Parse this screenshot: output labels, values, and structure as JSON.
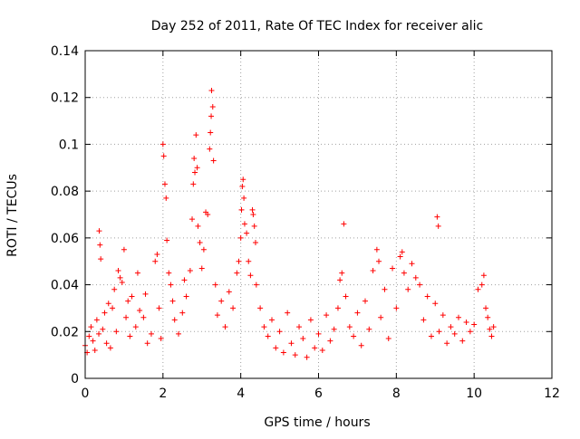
{
  "chart_data": {
    "type": "scatter",
    "title": "Day 252 of 2011, Rate Of TEC Index for receiver alic",
    "xlabel": "GPS time / hours",
    "ylabel": "ROTI / TECUs",
    "xlim": [
      0,
      12
    ],
    "ylim": [
      0,
      0.14
    ],
    "xticks": [
      0,
      2,
      4,
      6,
      8,
      10,
      12
    ],
    "yticks": [
      0,
      0.02,
      0.04,
      0.06,
      0.08,
      0.1,
      0.12,
      0.14
    ],
    "xtick_labels": [
      "0",
      "2",
      "4",
      "6",
      "8",
      "10",
      "12"
    ],
    "ytick_labels": [
      "0",
      "0.02",
      "0.04",
      "0.06",
      "0.08",
      "0.1",
      "0.12",
      "0.14"
    ],
    "grid": true,
    "marker": "+",
    "color": "#ff0000",
    "series": [
      {
        "name": "ROTI",
        "points": [
          [
            0.0,
            0.014
          ],
          [
            0.05,
            0.011
          ],
          [
            0.1,
            0.018
          ],
          [
            0.15,
            0.022
          ],
          [
            0.2,
            0.016
          ],
          [
            0.25,
            0.012
          ],
          [
            0.3,
            0.025
          ],
          [
            0.35,
            0.019
          ],
          [
            0.36,
            0.063
          ],
          [
            0.38,
            0.057
          ],
          [
            0.4,
            0.051
          ],
          [
            0.45,
            0.021
          ],
          [
            0.5,
            0.028
          ],
          [
            0.55,
            0.015
          ],
          [
            0.6,
            0.032
          ],
          [
            0.65,
            0.013
          ],
          [
            0.7,
            0.03
          ],
          [
            0.75,
            0.038
          ],
          [
            0.8,
            0.02
          ],
          [
            0.85,
            0.046
          ],
          [
            0.9,
            0.043
          ],
          [
            0.95,
            0.041
          ],
          [
            1.0,
            0.055
          ],
          [
            1.05,
            0.026
          ],
          [
            1.1,
            0.033
          ],
          [
            1.15,
            0.018
          ],
          [
            1.2,
            0.035
          ],
          [
            1.3,
            0.022
          ],
          [
            1.35,
            0.045
          ],
          [
            1.4,
            0.029
          ],
          [
            1.5,
            0.026
          ],
          [
            1.55,
            0.036
          ],
          [
            1.6,
            0.015
          ],
          [
            1.7,
            0.019
          ],
          [
            1.8,
            0.05
          ],
          [
            1.85,
            0.053
          ],
          [
            1.9,
            0.03
          ],
          [
            1.95,
            0.017
          ],
          [
            2.0,
            0.1
          ],
          [
            2.02,
            0.095
          ],
          [
            2.05,
            0.083
          ],
          [
            2.08,
            0.077
          ],
          [
            2.1,
            0.059
          ],
          [
            2.15,
            0.045
          ],
          [
            2.2,
            0.04
          ],
          [
            2.25,
            0.033
          ],
          [
            2.3,
            0.025
          ],
          [
            2.4,
            0.019
          ],
          [
            2.5,
            0.028
          ],
          [
            2.55,
            0.042
          ],
          [
            2.6,
            0.035
          ],
          [
            2.7,
            0.046
          ],
          [
            2.75,
            0.068
          ],
          [
            2.78,
            0.083
          ],
          [
            2.8,
            0.094
          ],
          [
            2.82,
            0.088
          ],
          [
            2.85,
            0.104
          ],
          [
            2.88,
            0.09
          ],
          [
            2.9,
            0.065
          ],
          [
            2.95,
            0.058
          ],
          [
            3.0,
            0.047
          ],
          [
            3.05,
            0.055
          ],
          [
            3.1,
            0.071
          ],
          [
            3.15,
            0.07
          ],
          [
            3.2,
            0.098
          ],
          [
            3.22,
            0.105
          ],
          [
            3.24,
            0.112
          ],
          [
            3.25,
            0.123
          ],
          [
            3.28,
            0.116
          ],
          [
            3.3,
            0.093
          ],
          [
            3.35,
            0.04
          ],
          [
            3.4,
            0.027
          ],
          [
            3.5,
            0.033
          ],
          [
            3.6,
            0.022
          ],
          [
            3.7,
            0.037
          ],
          [
            3.8,
            0.03
          ],
          [
            3.9,
            0.045
          ],
          [
            3.95,
            0.05
          ],
          [
            4.0,
            0.06
          ],
          [
            4.02,
            0.072
          ],
          [
            4.04,
            0.082
          ],
          [
            4.06,
            0.085
          ],
          [
            4.08,
            0.077
          ],
          [
            4.1,
            0.066
          ],
          [
            4.15,
            0.062
          ],
          [
            4.2,
            0.05
          ],
          [
            4.25,
            0.044
          ],
          [
            4.3,
            0.072
          ],
          [
            4.32,
            0.07
          ],
          [
            4.35,
            0.065
          ],
          [
            4.38,
            0.058
          ],
          [
            4.4,
            0.04
          ],
          [
            4.5,
            0.03
          ],
          [
            4.6,
            0.022
          ],
          [
            4.7,
            0.018
          ],
          [
            4.8,
            0.025
          ],
          [
            4.9,
            0.013
          ],
          [
            5.0,
            0.02
          ],
          [
            5.1,
            0.011
          ],
          [
            5.2,
            0.028
          ],
          [
            5.3,
            0.015
          ],
          [
            5.4,
            0.01
          ],
          [
            5.5,
            0.022
          ],
          [
            5.6,
            0.017
          ],
          [
            5.7,
            0.009
          ],
          [
            5.8,
            0.025
          ],
          [
            5.9,
            0.013
          ],
          [
            6.0,
            0.019
          ],
          [
            6.1,
            0.012
          ],
          [
            6.2,
            0.027
          ],
          [
            6.3,
            0.016
          ],
          [
            6.4,
            0.021
          ],
          [
            6.5,
            0.03
          ],
          [
            6.55,
            0.042
          ],
          [
            6.6,
            0.045
          ],
          [
            6.65,
            0.066
          ],
          [
            6.7,
            0.035
          ],
          [
            6.8,
            0.022
          ],
          [
            6.9,
            0.018
          ],
          [
            7.0,
            0.028
          ],
          [
            7.1,
            0.014
          ],
          [
            7.2,
            0.033
          ],
          [
            7.3,
            0.021
          ],
          [
            7.4,
            0.046
          ],
          [
            7.5,
            0.055
          ],
          [
            7.55,
            0.05
          ],
          [
            7.6,
            0.026
          ],
          [
            7.7,
            0.038
          ],
          [
            7.8,
            0.017
          ],
          [
            7.9,
            0.047
          ],
          [
            8.0,
            0.03
          ],
          [
            8.1,
            0.052
          ],
          [
            8.15,
            0.054
          ],
          [
            8.2,
            0.045
          ],
          [
            8.3,
            0.038
          ],
          [
            8.4,
            0.049
          ],
          [
            8.5,
            0.043
          ],
          [
            8.6,
            0.04
          ],
          [
            8.7,
            0.025
          ],
          [
            8.8,
            0.035
          ],
          [
            8.9,
            0.018
          ],
          [
            9.0,
            0.032
          ],
          [
            9.05,
            0.069
          ],
          [
            9.08,
            0.065
          ],
          [
            9.1,
            0.02
          ],
          [
            9.2,
            0.027
          ],
          [
            9.3,
            0.015
          ],
          [
            9.4,
            0.022
          ],
          [
            9.5,
            0.019
          ],
          [
            9.6,
            0.026
          ],
          [
            9.7,
            0.016
          ],
          [
            9.8,
            0.024
          ],
          [
            9.9,
            0.02
          ],
          [
            10.0,
            0.023
          ],
          [
            10.1,
            0.038
          ],
          [
            10.2,
            0.04
          ],
          [
            10.25,
            0.044
          ],
          [
            10.3,
            0.03
          ],
          [
            10.35,
            0.026
          ],
          [
            10.4,
            0.021
          ],
          [
            10.45,
            0.018
          ],
          [
            10.5,
            0.022
          ]
        ]
      }
    ]
  }
}
